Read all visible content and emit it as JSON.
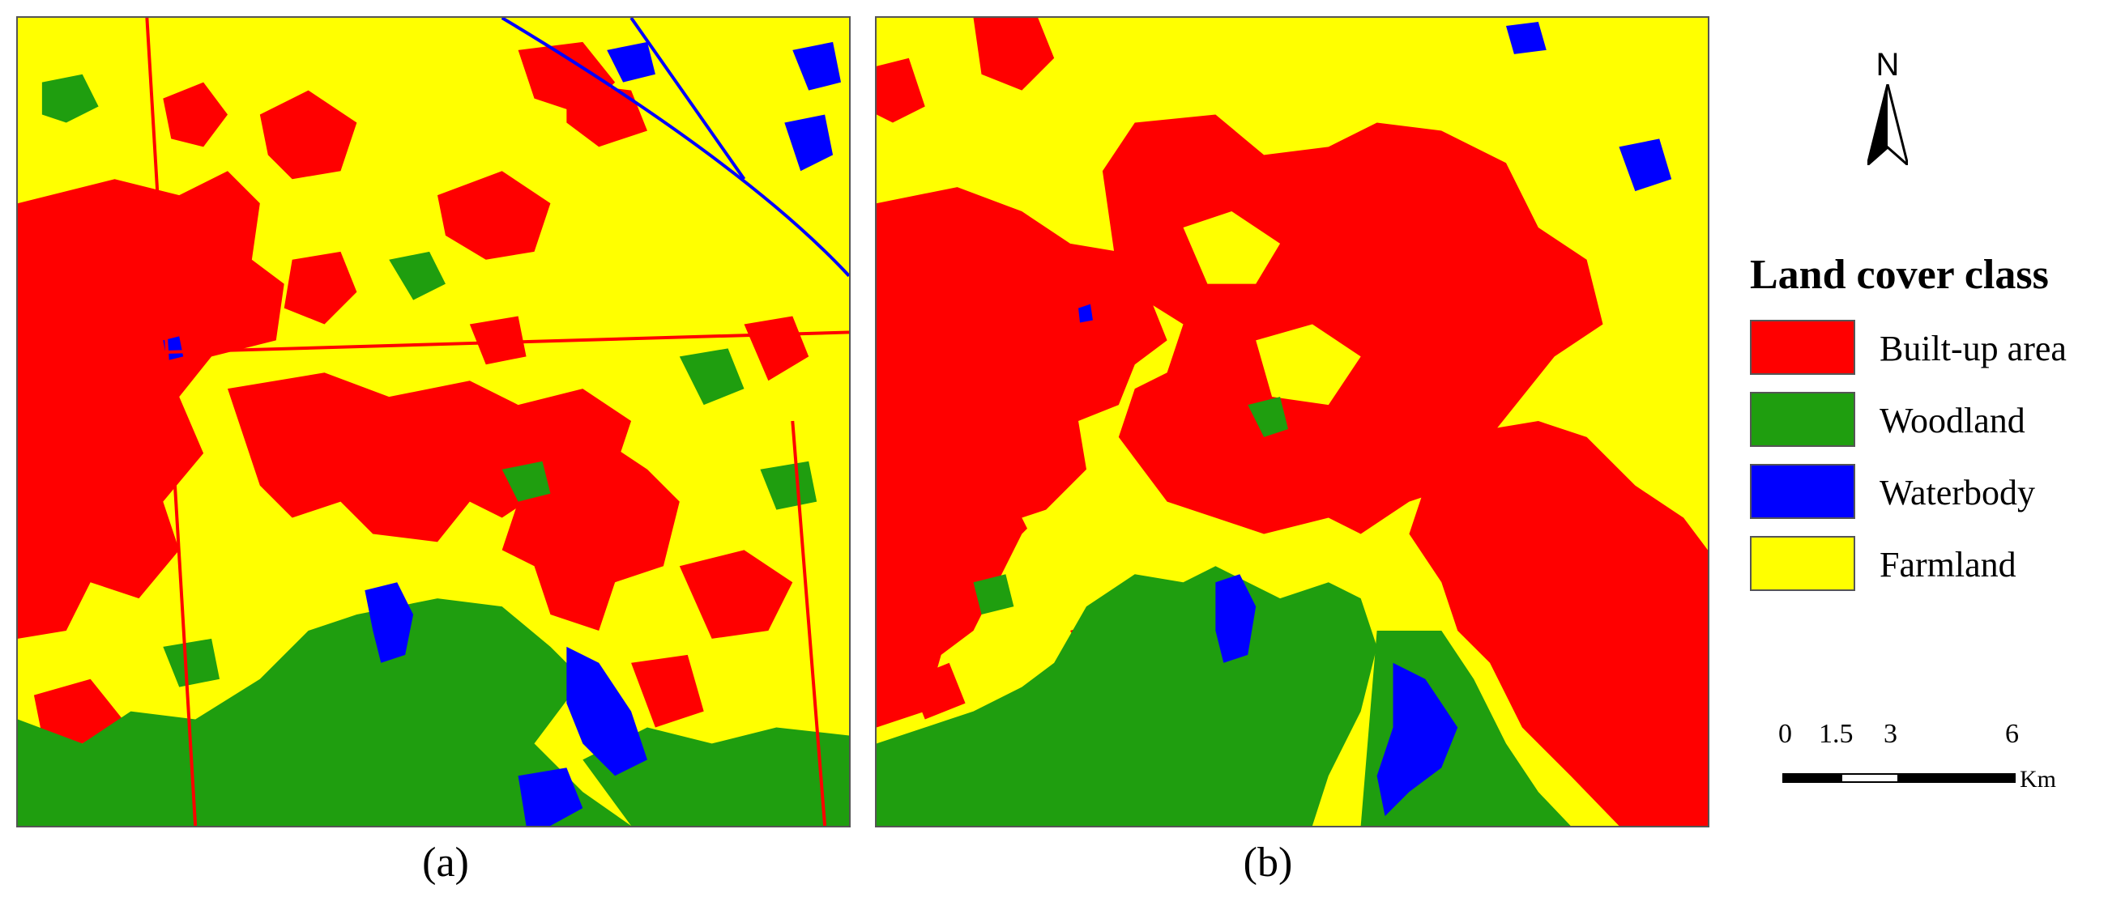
{
  "colors": {
    "built_up": "#ff0000",
    "woodland": "#1f9e0f",
    "waterbody": "#0000ff",
    "farmland": "#ffff00"
  },
  "panels": [
    {
      "caption": "(a)"
    },
    {
      "caption": "(b)"
    }
  ],
  "north_arrow": {
    "label": "N"
  },
  "legend": {
    "title": "Land cover class",
    "items": [
      {
        "label": "Built-up area",
        "color": "#ff0000"
      },
      {
        "label": "Woodland",
        "color": "#1f9e0f"
      },
      {
        "label": "Waterbody",
        "color": "#0000ff"
      },
      {
        "label": "Farmland",
        "color": "#ffff00"
      }
    ]
  },
  "scale_bar": {
    "ticks": [
      "0",
      "1.5",
      "3",
      "6"
    ],
    "tick_values": [
      0,
      1.5,
      3,
      6
    ],
    "unit": "Km"
  }
}
